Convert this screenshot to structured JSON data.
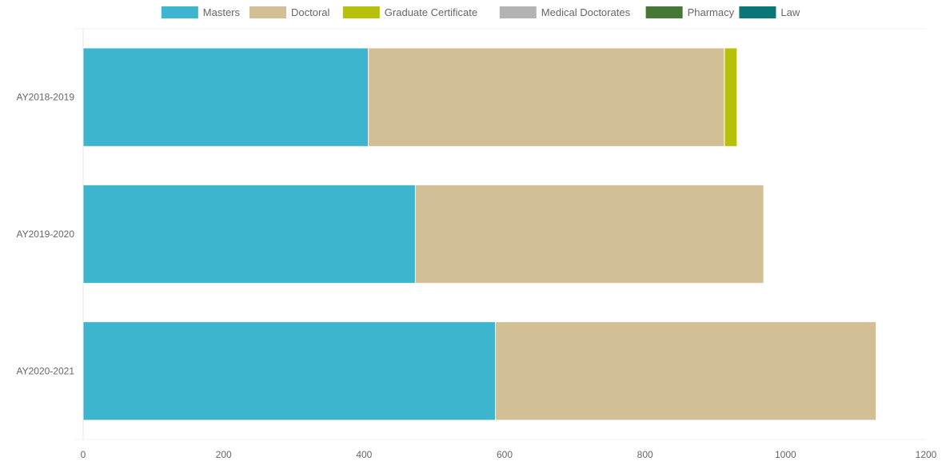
{
  "chart_data": {
    "type": "bar",
    "orientation": "horizontal",
    "stacked": true,
    "categories": [
      "AY2018-2019",
      "AY2019-2020",
      "AY2020-2021"
    ],
    "series": [
      {
        "name": "Masters",
        "color": "#3db5cf",
        "values": [
          406,
          473,
          587
        ]
      },
      {
        "name": "Doctoral",
        "color": "#d2bf96",
        "values": [
          507,
          496,
          542
        ]
      },
      {
        "name": "Graduate Certificate",
        "color": "#b7c10b",
        "values": [
          18,
          0,
          0
        ]
      },
      {
        "name": "Medical Doctorates",
        "color": "#b3b3b3",
        "values": [
          0,
          0,
          0
        ]
      },
      {
        "name": "Pharmacy",
        "color": "#457835",
        "values": [
          0,
          0,
          0
        ]
      },
      {
        "name": "Law",
        "color": "#0b7676",
        "values": [
          0,
          0,
          0
        ]
      }
    ],
    "xlim": [
      0,
      1200
    ],
    "x_ticks": [
      0,
      200,
      400,
      600,
      800,
      1000,
      1200
    ],
    "title": "",
    "xlabel": "",
    "ylabel": "",
    "legend_position": "top",
    "grid": false
  }
}
